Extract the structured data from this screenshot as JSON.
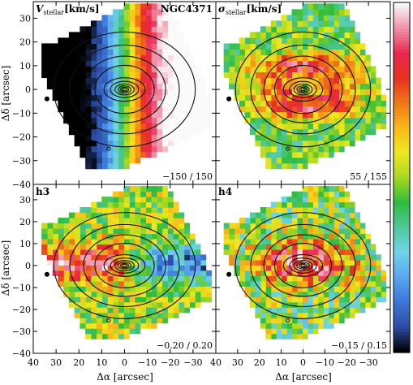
{
  "chart_data": {
    "type": "heatmap",
    "galaxy": "NGC4371",
    "xlabel": "Δα [arcsec]",
    "ylabel": "Δδ [arcsec]",
    "xlim": [
      40,
      -40
    ],
    "ylim": [
      -40,
      37
    ],
    "x_ticks": [
      "40",
      "30",
      "20",
      "10",
      "0",
      "−10",
      "−20",
      "−30"
    ],
    "x_ticks_right": [
      "40",
      "30",
      "20",
      "10",
      "0",
      "−10",
      "−20",
      "−30"
    ],
    "y_ticks": [
      "30",
      "20",
      "10",
      "0",
      "−10",
      "−20",
      "−30",
      "−40"
    ],
    "panels": [
      {
        "label": "V",
        "label_sub": "stellar",
        "label_unit": "[km/s]",
        "range_text": "−150 / 150",
        "vmin": -150,
        "vmax": 150,
        "kind": "velocity"
      },
      {
        "label": "σ",
        "label_sub": "stellar",
        "label_unit": "[km/s]",
        "range_text": "55 / 155",
        "vmin": 55,
        "vmax": 155,
        "kind": "dispersion"
      },
      {
        "label": "h3",
        "label_sub": "",
        "label_unit": "",
        "range_text": "−0.20 / 0.20",
        "vmin": -0.2,
        "vmax": 0.2,
        "kind": "h3"
      },
      {
        "label": "h4",
        "label_sub": "",
        "label_unit": "",
        "range_text": "−0.15 / 0.15",
        "vmin": -0.15,
        "vmax": 0.15,
        "kind": "h4"
      }
    ],
    "colorbar": {
      "colors": [
        "#000000",
        "#2e4fa8",
        "#3c78d8",
        "#5aa8f0",
        "#6fd4e8",
        "#4ec89a",
        "#2ebc3c",
        "#a8d820",
        "#f0e820",
        "#f8b818",
        "#f07818",
        "#e83020",
        "#e82850",
        "#f090a8",
        "#fafafa"
      ]
    }
  }
}
